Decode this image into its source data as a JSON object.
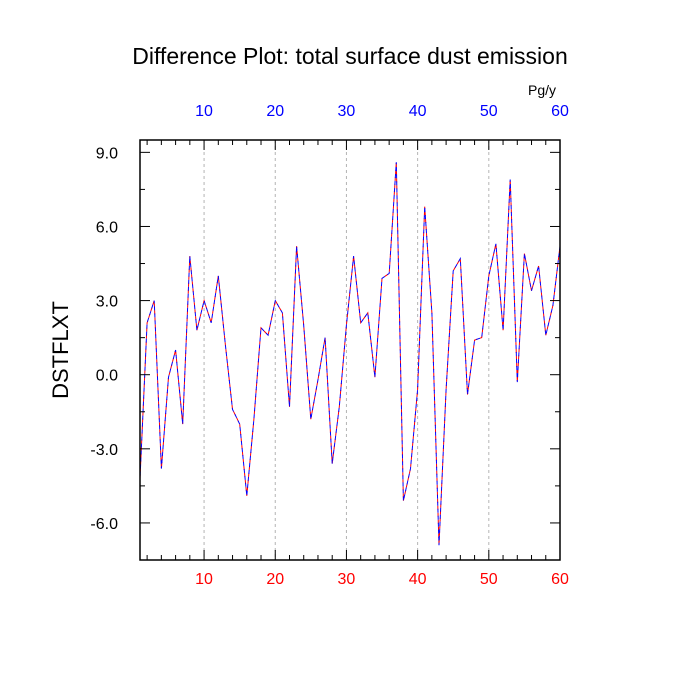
{
  "chart_data": {
    "type": "line",
    "title": "Difference Plot: total surface dust emission",
    "ylabel": "DSTFLXT",
    "units": "Pg/y",
    "xlim": [
      1,
      60
    ],
    "ylim": [
      -7.5,
      9.5
    ],
    "x_ticks": [
      10,
      20,
      30,
      40,
      50,
      60
    ],
    "x_tick_labels": [
      "10",
      "20",
      "30",
      "40",
      "50",
      "60"
    ],
    "y_ticks": [
      9.0,
      6.0,
      3.0,
      0.0,
      -3.0,
      -6.0
    ],
    "y_tick_labels": [
      "9.0",
      "6.0",
      "3.0",
      "0.0",
      "-3.0",
      "-6.0"
    ],
    "grid": "vertical dashed at x ticks",
    "colors": {
      "top_axis_labels": "#0000ff",
      "bottom_axis_labels": "#ff0000",
      "series_line_a": "#ff0000",
      "series_line_b": "#0000ff"
    },
    "series": [
      {
        "x": [
          1,
          2,
          3,
          4,
          5,
          6,
          7,
          8,
          9,
          10,
          11,
          12,
          13,
          14,
          15,
          16,
          17,
          18,
          19,
          20,
          21,
          22,
          23,
          24,
          25,
          26,
          27,
          28,
          29,
          30,
          31,
          32,
          33,
          34,
          35,
          36,
          37,
          38,
          39,
          40,
          41,
          42,
          43,
          44,
          45,
          46,
          47,
          48,
          49,
          50,
          51,
          52,
          53,
          54,
          55,
          56,
          57,
          58,
          59,
          60
        ],
        "values": [
          -4.2,
          2.1,
          3.0,
          -3.8,
          -0.1,
          1.0,
          -2.0,
          4.8,
          1.8,
          3.0,
          2.1,
          4.0,
          1.2,
          -1.4,
          -2.0,
          -4.9,
          -1.8,
          1.9,
          1.6,
          3.0,
          2.5,
          -1.3,
          5.2,
          2.0,
          -1.8,
          -0.2,
          1.5,
          -3.6,
          -1.3,
          2.0,
          4.8,
          2.1,
          2.5,
          -0.1,
          3.9,
          4.1,
          8.6,
          -5.1,
          -3.8,
          -0.6,
          6.8,
          2.5,
          -6.9,
          -0.6,
          4.2,
          4.7,
          -0.8,
          1.4,
          1.5,
          4.0,
          5.3,
          1.8,
          7.9,
          -0.3,
          4.9,
          3.4,
          4.4,
          1.6,
          2.8,
          5.2
        ]
      }
    ]
  }
}
